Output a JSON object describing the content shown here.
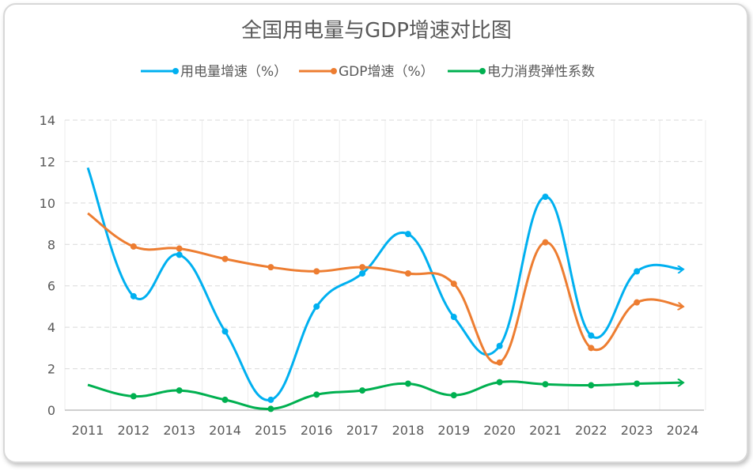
{
  "chart_data": {
    "type": "line",
    "title": "全国用电量与GDP增速对比图",
    "categories": [
      "2011",
      "2012",
      "2013",
      "2014",
      "2015",
      "2016",
      "2017",
      "2018",
      "2019",
      "2020",
      "2021",
      "2022",
      "2023",
      "2024"
    ],
    "ylim": [
      0,
      14
    ],
    "yticks": [
      0,
      2,
      4,
      6,
      8,
      10,
      12,
      14
    ],
    "grid": true,
    "legend": "top",
    "smooth": true,
    "series": [
      {
        "name": "用电量增速（%）",
        "color": "#00b0f0",
        "values": [
          11.7,
          5.5,
          7.5,
          3.8,
          0.5,
          5.0,
          6.6,
          8.5,
          4.5,
          3.1,
          10.3,
          3.6,
          6.7,
          6.8
        ]
      },
      {
        "name": "GDP增速（%）",
        "color": "#ed7d31",
        "values": [
          9.5,
          7.9,
          7.8,
          7.3,
          6.9,
          6.7,
          6.9,
          6.6,
          6.1,
          2.3,
          8.1,
          3.0,
          5.2,
          5.0
        ]
      },
      {
        "name": "电力消费弹性系数",
        "color": "#00b050",
        "values": [
          1.22,
          0.67,
          0.95,
          0.5,
          0.06,
          0.75,
          0.95,
          1.28,
          0.72,
          1.35,
          1.25,
          1.2,
          1.28,
          1.33
        ]
      }
    ]
  }
}
